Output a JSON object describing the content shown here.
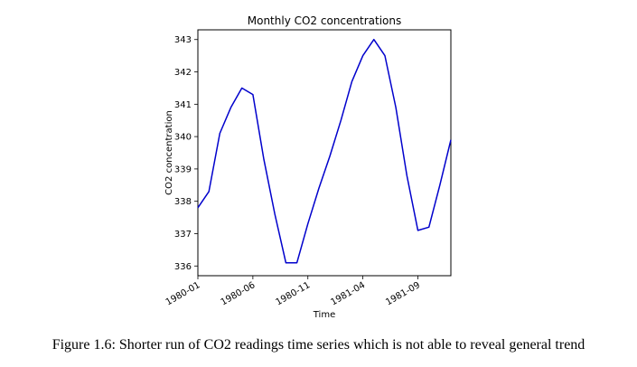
{
  "chart_data": {
    "type": "line",
    "title": "Monthly CO2 concentrations",
    "xlabel": "Time",
    "ylabel": "CO2 concentration",
    "x": [
      "1980-01",
      "1980-02",
      "1980-03",
      "1980-04",
      "1980-05",
      "1980-06",
      "1980-07",
      "1980-08",
      "1980-09",
      "1980-10",
      "1980-11",
      "1980-12",
      "1981-01",
      "1981-02",
      "1981-03",
      "1981-04",
      "1981-05",
      "1981-06",
      "1981-07",
      "1981-08",
      "1981-09",
      "1981-10",
      "1981-11",
      "1981-12"
    ],
    "series": [
      {
        "values": [
          337.8,
          338.3,
          340.1,
          340.9,
          341.5,
          341.3,
          339.3,
          337.6,
          336.1,
          336.1,
          337.3,
          338.4,
          339.4,
          340.5,
          341.7,
          342.5,
          343.0,
          342.5,
          340.9,
          338.8,
          337.1,
          337.2,
          338.5,
          339.9
        ]
      }
    ],
    "xticks": [
      "1980-01",
      "1980-06",
      "1980-11",
      "1981-04",
      "1981-09"
    ],
    "yticks": [
      336,
      337,
      338,
      339,
      340,
      341,
      342,
      343
    ],
    "ylim": [
      335.7,
      343.3
    ],
    "line_color": "#0000cc",
    "grid": false,
    "legend": false
  },
  "caption": "Figure 1.6: Shorter run of CO2 readings time series which is not able to reveal general trend"
}
